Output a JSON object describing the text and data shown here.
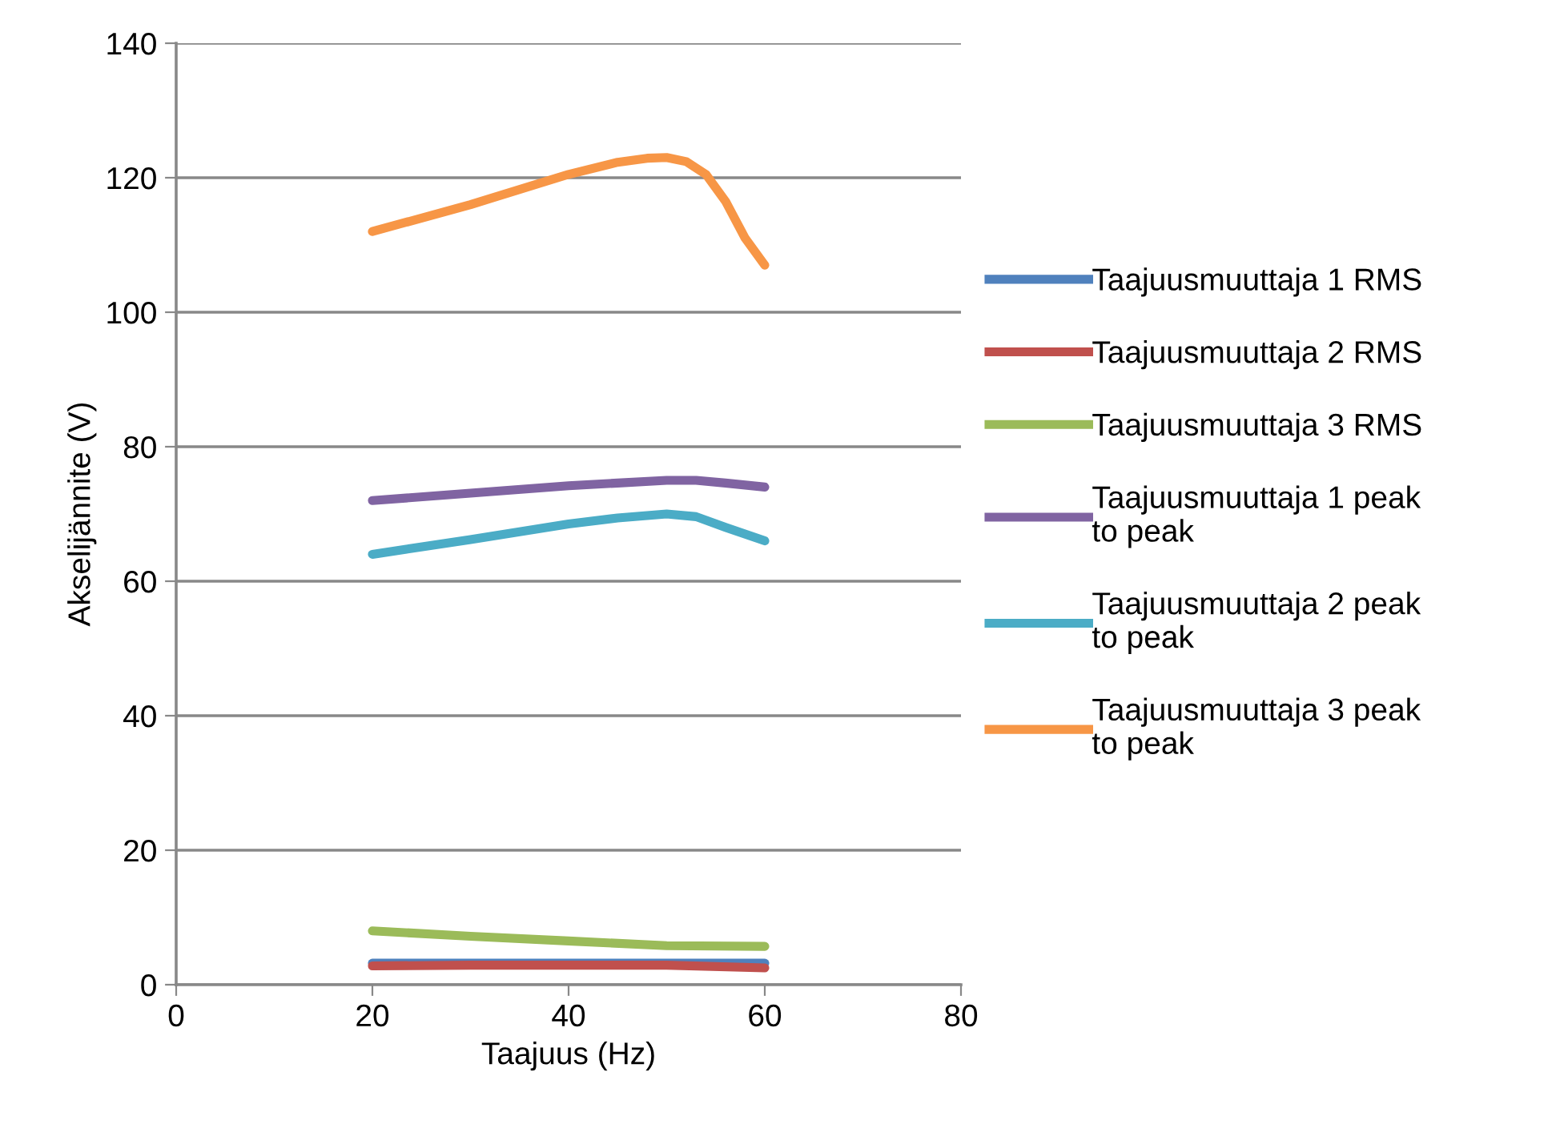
{
  "chart_data": {
    "type": "line",
    "xlabel": "Taajuus (Hz)",
    "ylabel": "Akselijännite (V)",
    "xlim": [
      0,
      80
    ],
    "xticks": [
      0,
      20,
      40,
      60,
      80
    ],
    "ylim": [
      0,
      140
    ],
    "yticks": [
      0,
      20,
      40,
      60,
      80,
      100,
      120,
      140
    ],
    "grid": "y",
    "legend": "right",
    "marker": "none",
    "line_style": "solid",
    "series": [
      {
        "name": "Taajuusmuuttaja 1 RMS",
        "color": "#4f81bd",
        "x": [
          20,
          30,
          40,
          50,
          60
        ],
        "values": [
          3.2,
          3.2,
          3.2,
          3.2,
          3.2
        ]
      },
      {
        "name": "Taajuusmuuttaja 2 RMS",
        "color": "#c0504d",
        "x": [
          20,
          30,
          40,
          50,
          60
        ],
        "values": [
          2.8,
          2.9,
          2.9,
          2.9,
          2.5
        ]
      },
      {
        "name": "Taajuusmuuttaja 3 RMS",
        "color": "#9bbb59",
        "x": [
          20,
          30,
          40,
          50,
          60
        ],
        "values": [
          8,
          7.2,
          6.5,
          5.8,
          5.7
        ]
      },
      {
        "name": "Taajuusmuuttaja 1 peak to peak",
        "color": "#8064a2",
        "x": [
          20,
          30,
          40,
          45,
          50,
          53,
          56,
          60
        ],
        "values": [
          72,
          73.1,
          74.2,
          74.6,
          75,
          75,
          74.6,
          74
        ]
      },
      {
        "name": "Taajuusmuuttaja 2 peak to peak",
        "color": "#4bacc6",
        "x": [
          20,
          30,
          40,
          45,
          50,
          53,
          56,
          60
        ],
        "values": [
          64,
          66.2,
          68.5,
          69.4,
          70,
          69.6,
          68,
          66
        ]
      },
      {
        "name": "Taajuusmuuttaja 3 peak to peak",
        "color": "#f79646",
        "x": [
          20,
          30,
          40,
          45,
          48,
          50,
          52,
          54,
          56,
          58,
          60
        ],
        "values": [
          112,
          116,
          120.5,
          122.3,
          122.9,
          123,
          122.4,
          120.5,
          116.5,
          111,
          107
        ]
      }
    ]
  }
}
